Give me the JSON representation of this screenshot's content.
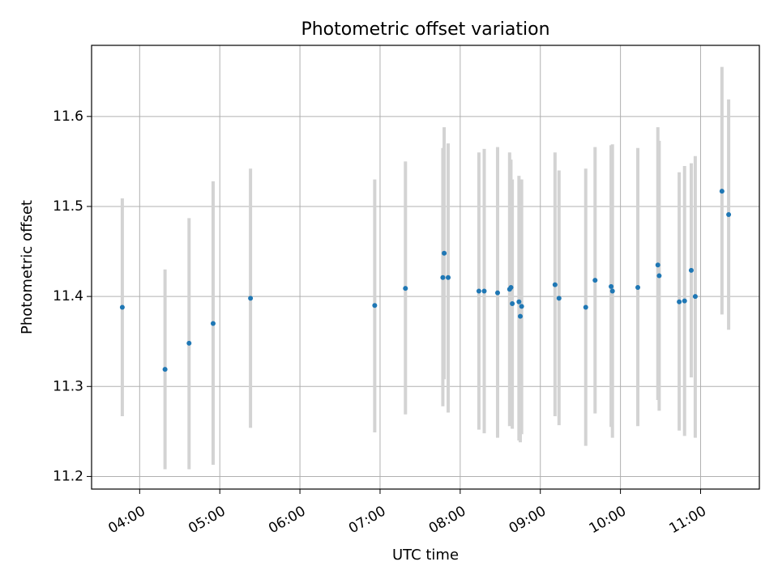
{
  "chart_data": {
    "type": "scatter",
    "title": "Photometric offset variation",
    "xlabel": "UTC time",
    "ylabel": "Photometric offset",
    "x_unit": "UTC time (HH:MM)",
    "xlim": [
      "03:24",
      "11:44"
    ],
    "ylim": [
      11.186,
      11.679
    ],
    "grid": true,
    "x_ticks": [
      "04:00",
      "05:00",
      "06:00",
      "07:00",
      "08:00",
      "09:00",
      "10:00",
      "11:00"
    ],
    "y_ticks": [
      11.2,
      11.3,
      11.4,
      11.5,
      11.6
    ],
    "y_tick_labels": [
      "11.2",
      "11.3",
      "11.4",
      "11.5",
      "11.6"
    ],
    "colors": {
      "point": "#1f77b4",
      "errorbar": "#d3d3d3",
      "grid": "#b0b0b0"
    },
    "points": [
      {
        "t": "03:47",
        "y": 11.388,
        "lo": 11.267,
        "hi": 11.509
      },
      {
        "t": "04:19",
        "y": 11.319,
        "lo": 11.208,
        "hi": 11.43
      },
      {
        "t": "04:37",
        "y": 11.348,
        "lo": 11.208,
        "hi": 11.487
      },
      {
        "t": "04:55",
        "y": 11.37,
        "lo": 11.213,
        "hi": 11.528
      },
      {
        "t": "05:23",
        "y": 11.398,
        "lo": 11.254,
        "hi": 11.542
      },
      {
        "t": "06:56",
        "y": 11.39,
        "lo": 11.249,
        "hi": 11.53
      },
      {
        "t": "07:19",
        "y": 11.409,
        "lo": 11.269,
        "hi": 11.55
      },
      {
        "t": "07:47",
        "y": 11.421,
        "lo": 11.278,
        "hi": 11.565
      },
      {
        "t": "07:48",
        "y": 11.448,
        "lo": 11.308,
        "hi": 11.588
      },
      {
        "t": "07:51",
        "y": 11.421,
        "lo": 11.271,
        "hi": 11.57
      },
      {
        "t": "08:14",
        "y": 11.406,
        "lo": 11.252,
        "hi": 11.56
      },
      {
        "t": "08:18",
        "y": 11.406,
        "lo": 11.248,
        "hi": 11.564
      },
      {
        "t": "08:28",
        "y": 11.404,
        "lo": 11.243,
        "hi": 11.566
      },
      {
        "t": "08:37",
        "y": 11.408,
        "lo": 11.256,
        "hi": 11.56
      },
      {
        "t": "08:38",
        "y": 11.41,
        "lo": 11.26,
        "hi": 11.552
      },
      {
        "t": "08:39",
        "y": 11.392,
        "lo": 11.253,
        "hi": 11.53
      },
      {
        "t": "08:44",
        "y": 11.394,
        "lo": 11.24,
        "hi": 11.534
      },
      {
        "t": "08:45",
        "y": 11.378,
        "lo": 11.238,
        "hi": 11.53
      },
      {
        "t": "08:46",
        "y": 11.389,
        "lo": 11.247,
        "hi": 11.53
      },
      {
        "t": "09:11",
        "y": 11.413,
        "lo": 11.267,
        "hi": 11.56
      },
      {
        "t": "09:14",
        "y": 11.398,
        "lo": 11.257,
        "hi": 11.54
      },
      {
        "t": "09:34",
        "y": 11.388,
        "lo": 11.234,
        "hi": 11.542
      },
      {
        "t": "09:41",
        "y": 11.418,
        "lo": 11.27,
        "hi": 11.566
      },
      {
        "t": "09:53",
        "y": 11.411,
        "lo": 11.255,
        "hi": 11.568
      },
      {
        "t": "09:54",
        "y": 11.406,
        "lo": 11.243,
        "hi": 11.569
      },
      {
        "t": "10:13",
        "y": 11.41,
        "lo": 11.256,
        "hi": 11.565
      },
      {
        "t": "10:28",
        "y": 11.435,
        "lo": 11.285,
        "hi": 11.588
      },
      {
        "t": "10:29",
        "y": 11.423,
        "lo": 11.273,
        "hi": 11.573
      },
      {
        "t": "10:44",
        "y": 11.394,
        "lo": 11.251,
        "hi": 11.538
      },
      {
        "t": "10:48",
        "y": 11.395,
        "lo": 11.245,
        "hi": 11.545
      },
      {
        "t": "10:53",
        "y": 11.429,
        "lo": 11.31,
        "hi": 11.548
      },
      {
        "t": "10:56",
        "y": 11.4,
        "lo": 11.243,
        "hi": 11.556
      },
      {
        "t": "11:16",
        "y": 11.517,
        "lo": 11.38,
        "hi": 11.655
      },
      {
        "t": "11:21",
        "y": 11.491,
        "lo": 11.363,
        "hi": 11.619
      }
    ]
  }
}
